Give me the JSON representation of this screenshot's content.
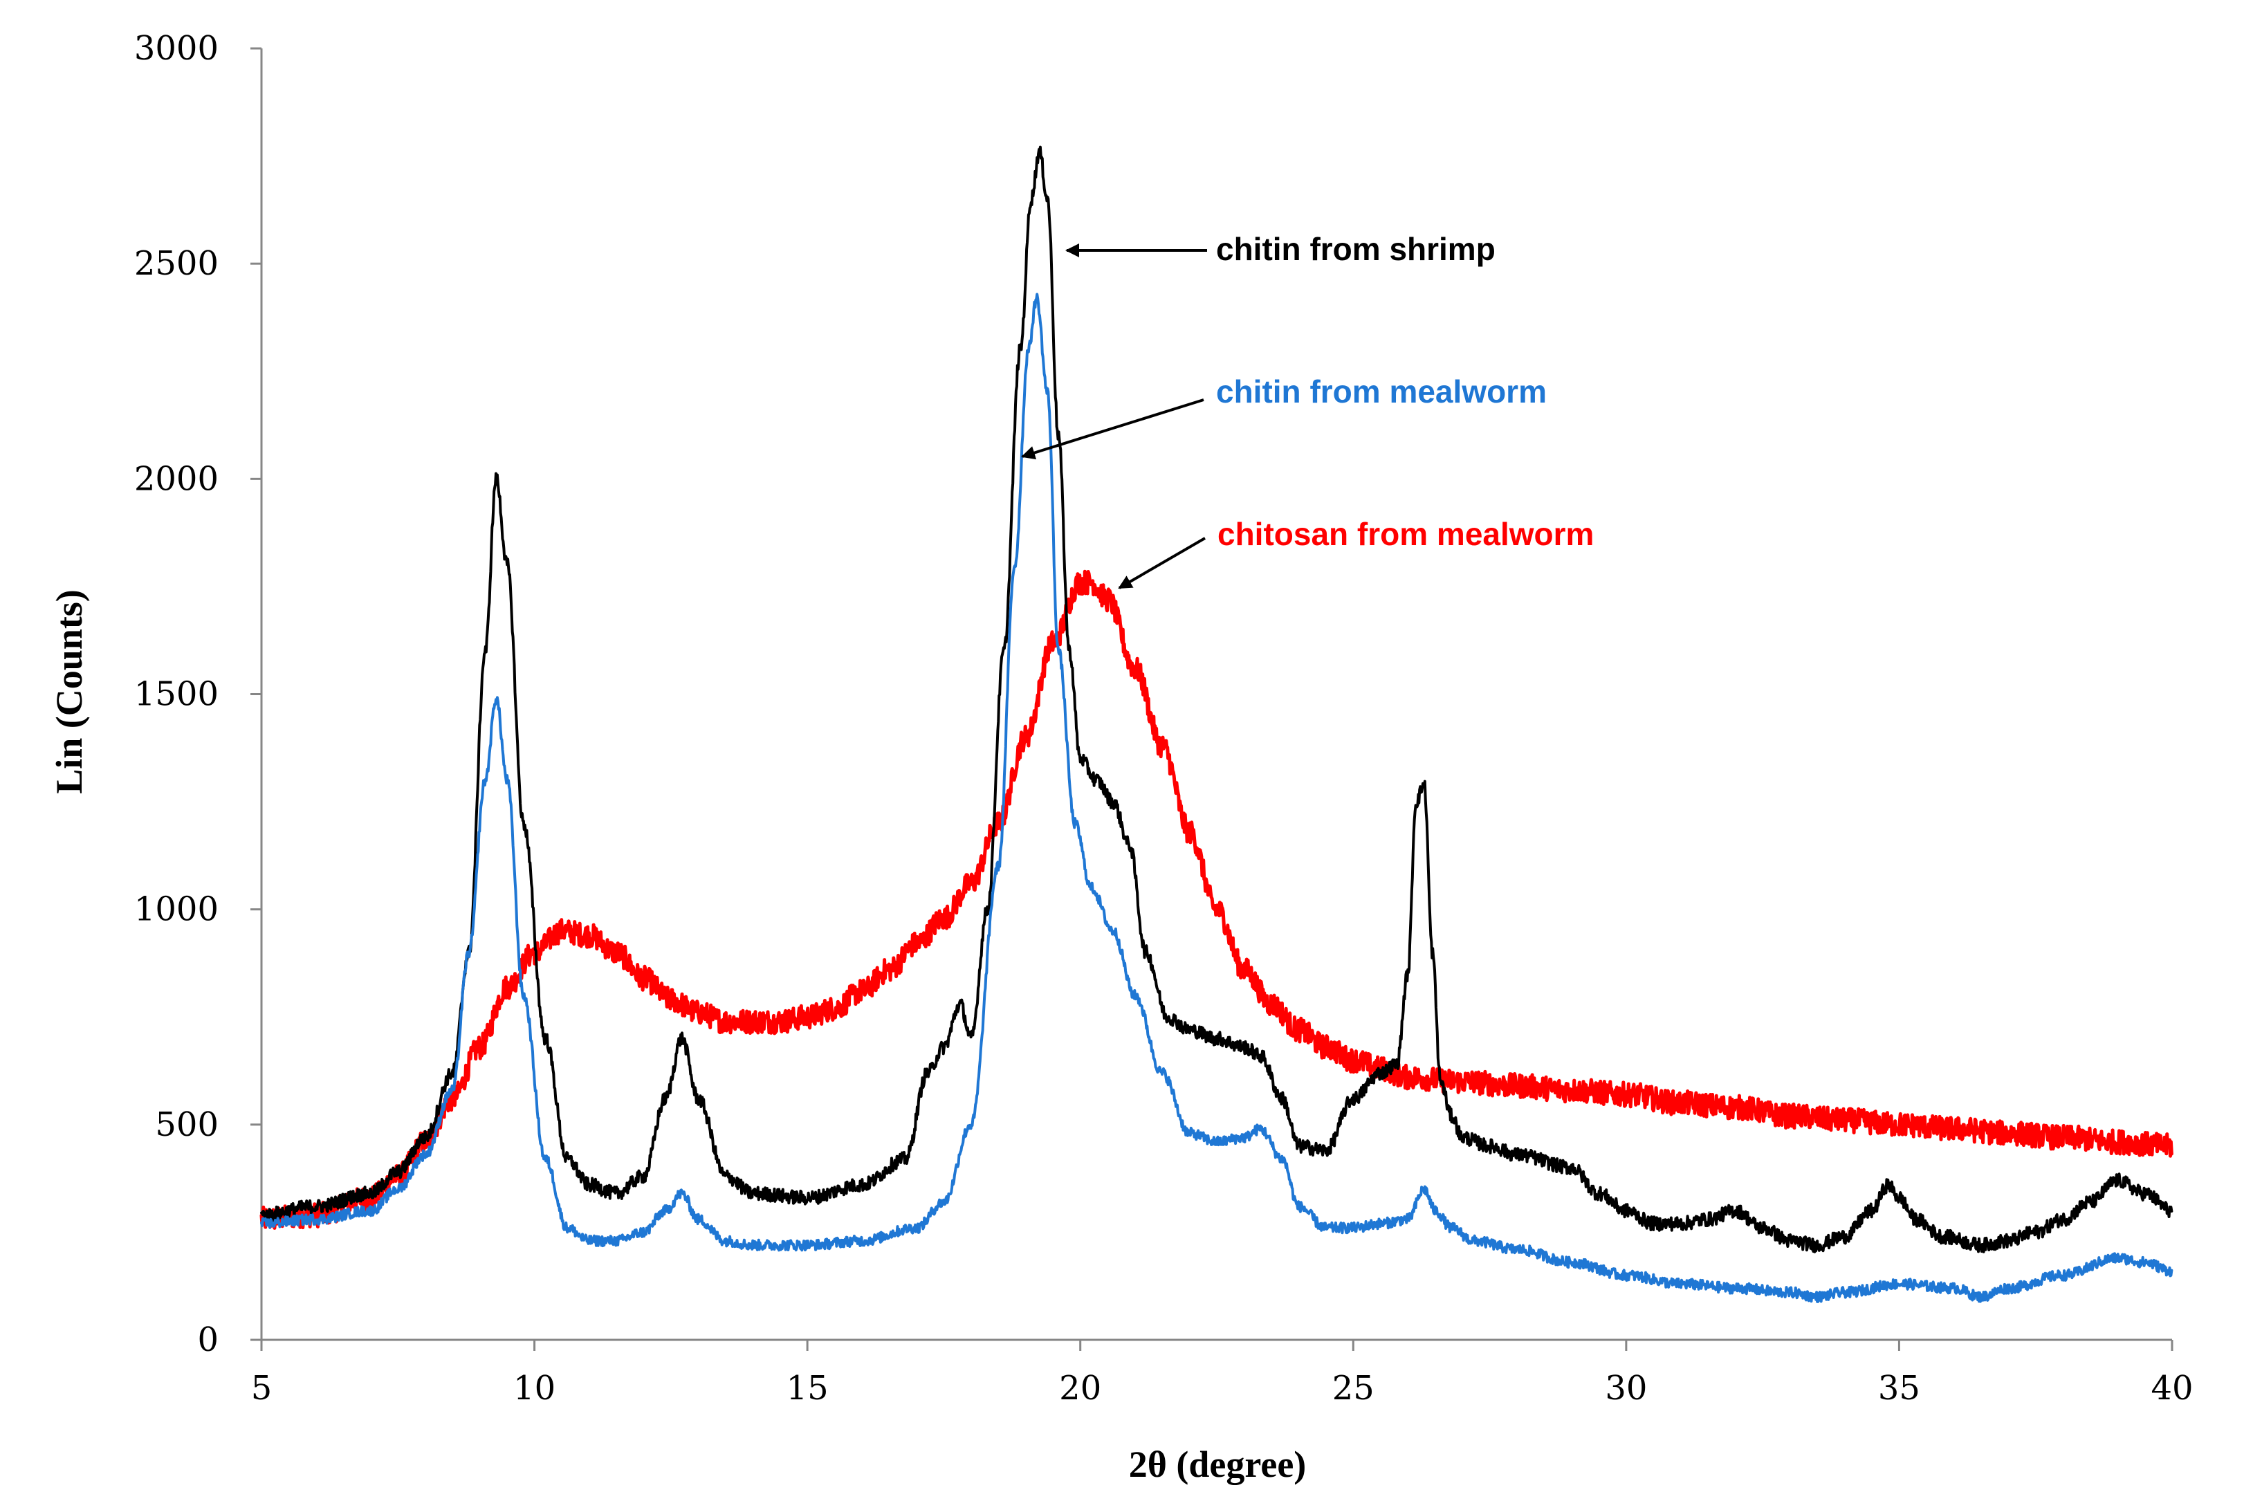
{
  "chart_data": {
    "type": "line",
    "title": "",
    "xlabel": "2θ (degree)",
    "ylabel": "Lin (Counts)",
    "xlim": [
      5,
      40
    ],
    "ylim": [
      0,
      3000
    ],
    "xticks": [
      "5",
      "10",
      "15",
      "20",
      "25",
      "30",
      "35",
      "40"
    ],
    "yticks": [
      "0",
      "500",
      "1000",
      "1500",
      "2000",
      "2500",
      "3000"
    ],
    "grid": false,
    "series": [
      {
        "name": "chitosan from mealworm",
        "color": "#ff0000",
        "noise": 28,
        "x": [
          5,
          6,
          7,
          7.5,
          8,
          8.5,
          9,
          9.5,
          10,
          10.5,
          11,
          11.5,
          12,
          12.5,
          13,
          13.5,
          14,
          14.5,
          15,
          15.5,
          16,
          16.5,
          17,
          17.5,
          18,
          18.5,
          19,
          19.5,
          20,
          20.2,
          20.5,
          21,
          21.5,
          22,
          22.5,
          23,
          23.5,
          24,
          24.5,
          25,
          25.5,
          26,
          27,
          28,
          29,
          30,
          31,
          32,
          33,
          34,
          35,
          36,
          37,
          38,
          39,
          40
        ],
        "y": [
          280,
          290,
          330,
          380,
          460,
          560,
          680,
          820,
          900,
          950,
          940,
          900,
          840,
          790,
          760,
          740,
          740,
          740,
          750,
          770,
          810,
          860,
          920,
          980,
          1060,
          1200,
          1400,
          1620,
          1760,
          1760,
          1720,
          1560,
          1380,
          1180,
          1000,
          860,
          780,
          720,
          680,
          650,
          630,
          610,
          600,
          590,
          580,
          570,
          550,
          540,
          520,
          510,
          500,
          490,
          480,
          470,
          460,
          450
        ]
      },
      {
        "name": "chitin from shrimp",
        "color": "#000000",
        "noise": 16,
        "x": [
          5,
          6,
          7,
          7.5,
          8,
          8.5,
          8.8,
          9.1,
          9.3,
          9.5,
          9.8,
          10.2,
          10.6,
          11,
          11.5,
          12,
          12.4,
          12.7,
          13,
          13.5,
          14,
          15,
          16,
          16.8,
          17.2,
          17.5,
          17.8,
          18,
          18.3,
          18.6,
          18.9,
          19.1,
          19.25,
          19.4,
          19.6,
          19.8,
          20,
          20.3,
          20.6,
          20.9,
          21.2,
          21.6,
          22,
          22.5,
          23,
          23.3,
          23.7,
          24,
          24.5,
          25,
          25.5,
          25.8,
          26,
          26.15,
          26.3,
          26.45,
          26.6,
          26.8,
          27,
          27.5,
          28,
          29,
          29.5,
          30,
          30.5,
          31,
          31.5,
          32,
          32.5,
          33,
          33.5,
          34,
          34.5,
          34.8,
          35,
          35.3,
          35.8,
          36.5,
          37,
          37.5,
          38,
          38.5,
          39,
          39.5,
          40
        ],
        "y": [
          290,
          310,
          340,
          390,
          470,
          620,
          900,
          1600,
          2000,
          1800,
          1200,
          700,
          420,
          360,
          340,
          380,
          560,
          700,
          560,
          380,
          340,
          330,
          360,
          420,
          620,
          680,
          780,
          700,
          1000,
          1600,
          2300,
          2650,
          2760,
          2650,
          2100,
          1600,
          1350,
          1300,
          1250,
          1150,
          900,
          750,
          720,
          700,
          680,
          660,
          560,
          450,
          440,
          560,
          620,
          640,
          850,
          1250,
          1290,
          900,
          600,
          520,
          470,
          450,
          430,
          400,
          340,
          300,
          270,
          270,
          280,
          300,
          260,
          230,
          220,
          240,
          300,
          360,
          330,
          280,
          240,
          220,
          230,
          250,
          280,
          320,
          370,
          340,
          300
        ]
      },
      {
        "name": "chitin from mealworm",
        "color": "#1f77d4",
        "noise": 12,
        "x": [
          5,
          6,
          7,
          7.5,
          8,
          8.5,
          8.8,
          9.1,
          9.3,
          9.5,
          9.8,
          10.2,
          10.6,
          11,
          11.5,
          12,
          12.4,
          12.7,
          13,
          13.5,
          14,
          15,
          16,
          17,
          17.5,
          18,
          18.5,
          18.8,
          19.05,
          19.2,
          19.4,
          19.6,
          19.9,
          20.2,
          20.6,
          21,
          21.5,
          22,
          22.5,
          23,
          23.3,
          23.7,
          24,
          24.5,
          25,
          25.5,
          26,
          26.3,
          26.5,
          26.8,
          27.2,
          28,
          29,
          30,
          31,
          32,
          33,
          33.5,
          34,
          35,
          36,
          36.5,
          37,
          38,
          39,
          39.5,
          40
        ],
        "y": [
          270,
          280,
          300,
          350,
          430,
          580,
          900,
          1300,
          1490,
          1300,
          800,
          420,
          260,
          230,
          230,
          250,
          300,
          340,
          280,
          230,
          220,
          220,
          230,
          260,
          320,
          500,
          1100,
          1800,
          2300,
          2420,
          2200,
          1600,
          1200,
          1050,
          950,
          800,
          620,
          480,
          460,
          470,
          490,
          420,
          310,
          260,
          260,
          270,
          280,
          350,
          300,
          260,
          230,
          210,
          180,
          150,
          130,
          120,
          110,
          100,
          110,
          130,
          120,
          100,
          120,
          150,
          190,
          180,
          160
        ]
      }
    ]
  },
  "annotations": {
    "shrimp": {
      "text": "chitin from shrimp",
      "color": "#000000"
    },
    "mealworm": {
      "text": "chitin from mealworm",
      "color": "#1f77d4"
    },
    "chitosan": {
      "text": "chitosan from mealworm",
      "color": "#ff0000"
    }
  }
}
